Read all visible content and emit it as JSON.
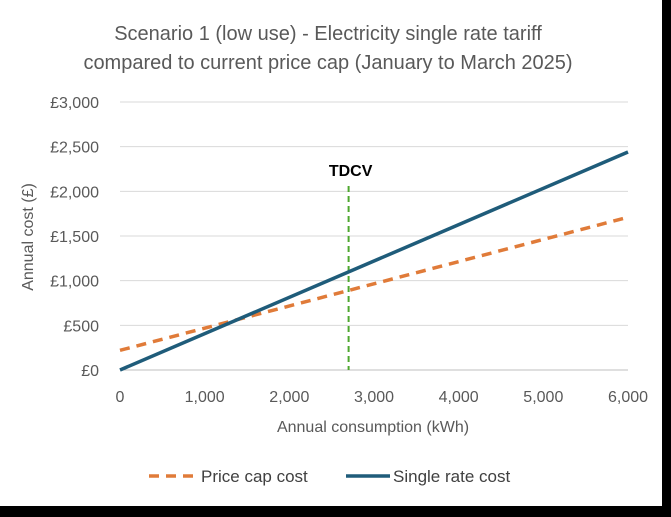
{
  "chart_data": {
    "type": "line",
    "title_line1": "Scenario 1 (low use) - Electricity single rate tariff",
    "title_line2": "compared to current price cap (January to March 2025)",
    "xlabel": "Annual consumption (kWh)",
    "ylabel": "Annual cost (£)",
    "xlim": [
      0,
      6000
    ],
    "ylim": [
      0,
      3000
    ],
    "x_ticks": [
      0,
      1000,
      2000,
      3000,
      4000,
      5000,
      6000
    ],
    "x_tick_labels": [
      "0",
      "1,000",
      "2,000",
      "3,000",
      "4,000",
      "5,000",
      "6,000"
    ],
    "y_ticks": [
      0,
      500,
      1000,
      1500,
      2000,
      2500,
      3000
    ],
    "y_tick_labels": [
      "£0",
      "£500",
      "£1,000",
      "£1,500",
      "£2,000",
      "£2,500",
      "£3,000"
    ],
    "grid": "horizontal",
    "legend_position": "bottom",
    "series": [
      {
        "name": "Price cap cost",
        "style": "dashed",
        "color": "#E07B39",
        "x": [
          0,
          6000
        ],
        "y": [
          220,
          1710
        ]
      },
      {
        "name": "Single rate cost",
        "style": "solid",
        "color": "#1F5C7A",
        "x": [
          0,
          6000
        ],
        "y": [
          0,
          2440
        ]
      }
    ],
    "annotations": [
      {
        "label": "TDCV",
        "x": 2700,
        "style": "dashed-vertical",
        "color": "#4EA72E"
      }
    ]
  }
}
